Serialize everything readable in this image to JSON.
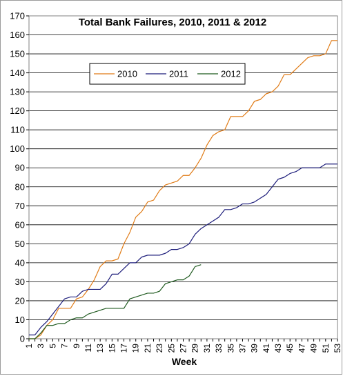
{
  "chart_data": {
    "type": "line",
    "title": "Total Bank Failures, 2010, 2011 & 2012",
    "xlabel": "Week",
    "ylabel": "",
    "xlim": [
      1,
      53
    ],
    "ylim": [
      0,
      170
    ],
    "y_tick_step": 10,
    "x_tick_labels": [
      "1",
      "3",
      "5",
      "7",
      "9",
      "11",
      "13",
      "15",
      "17",
      "19",
      "21",
      "23",
      "25",
      "27",
      "29",
      "31",
      "33",
      "35",
      "37",
      "39",
      "41",
      "43",
      "45",
      "47",
      "49",
      "51",
      "53"
    ],
    "grid": "horizontal",
    "legend": "upper-left, inside plot, single row",
    "series": [
      {
        "name": "2010",
        "color": "#e07b16",
        "x": [
          1,
          2,
          3,
          4,
          5,
          6,
          7,
          8,
          9,
          10,
          11,
          12,
          13,
          14,
          15,
          16,
          17,
          18,
          19,
          20,
          21,
          22,
          23,
          24,
          25,
          26,
          27,
          28,
          29,
          30,
          31,
          32,
          33,
          34,
          35,
          36,
          37,
          38,
          39,
          40,
          41,
          42,
          43,
          44,
          45,
          46,
          47,
          48,
          49,
          50,
          51,
          52,
          53
        ],
        "y": [
          0,
          0,
          2,
          7,
          10,
          16,
          16,
          16,
          21,
          22,
          26,
          31,
          38,
          41,
          41,
          42,
          50,
          56,
          64,
          67,
          72,
          73,
          78,
          81,
          82,
          83,
          86,
          86,
          90,
          95,
          102,
          107,
          109,
          110,
          117,
          117,
          117,
          120,
          125,
          126,
          129,
          130,
          133,
          139,
          139,
          142,
          145,
          148,
          149,
          149,
          150,
          157,
          157
        ]
      },
      {
        "name": "2011",
        "color": "#1c1c7a",
        "x": [
          1,
          2,
          3,
          4,
          5,
          6,
          7,
          8,
          9,
          10,
          11,
          12,
          13,
          14,
          15,
          16,
          17,
          18,
          19,
          20,
          21,
          22,
          23,
          24,
          25,
          26,
          27,
          28,
          29,
          30,
          31,
          32,
          33,
          34,
          35,
          36,
          37,
          38,
          39,
          40,
          41,
          42,
          43,
          44,
          45,
          46,
          47,
          48,
          49,
          50,
          51,
          52,
          53
        ],
        "y": [
          2,
          2,
          6,
          9,
          13,
          17,
          21,
          22,
          22,
          25,
          26,
          26,
          26,
          29,
          34,
          34,
          37,
          40,
          40,
          43,
          44,
          44,
          44,
          45,
          47,
          47,
          48,
          50,
          55,
          58,
          60,
          62,
          64,
          68,
          68,
          69,
          71,
          71,
          72,
          74,
          76,
          80,
          84,
          85,
          87,
          88,
          90,
          90,
          90,
          90,
          92,
          92,
          92
        ]
      },
      {
        "name": "2012",
        "color": "#1f5a1f",
        "x": [
          1,
          2,
          3,
          4,
          5,
          6,
          7,
          8,
          9,
          10,
          11,
          12,
          13,
          14,
          15,
          16,
          17,
          18,
          19,
          20,
          21,
          22,
          23,
          24,
          25,
          26,
          27,
          28,
          29,
          30
        ],
        "y": [
          0,
          0,
          3,
          7,
          7,
          8,
          8,
          10,
          11,
          11,
          13,
          14,
          15,
          16,
          16,
          16,
          16,
          21,
          22,
          23,
          24,
          24,
          25,
          29,
          30,
          31,
          31,
          33,
          38,
          39
        ]
      }
    ]
  }
}
